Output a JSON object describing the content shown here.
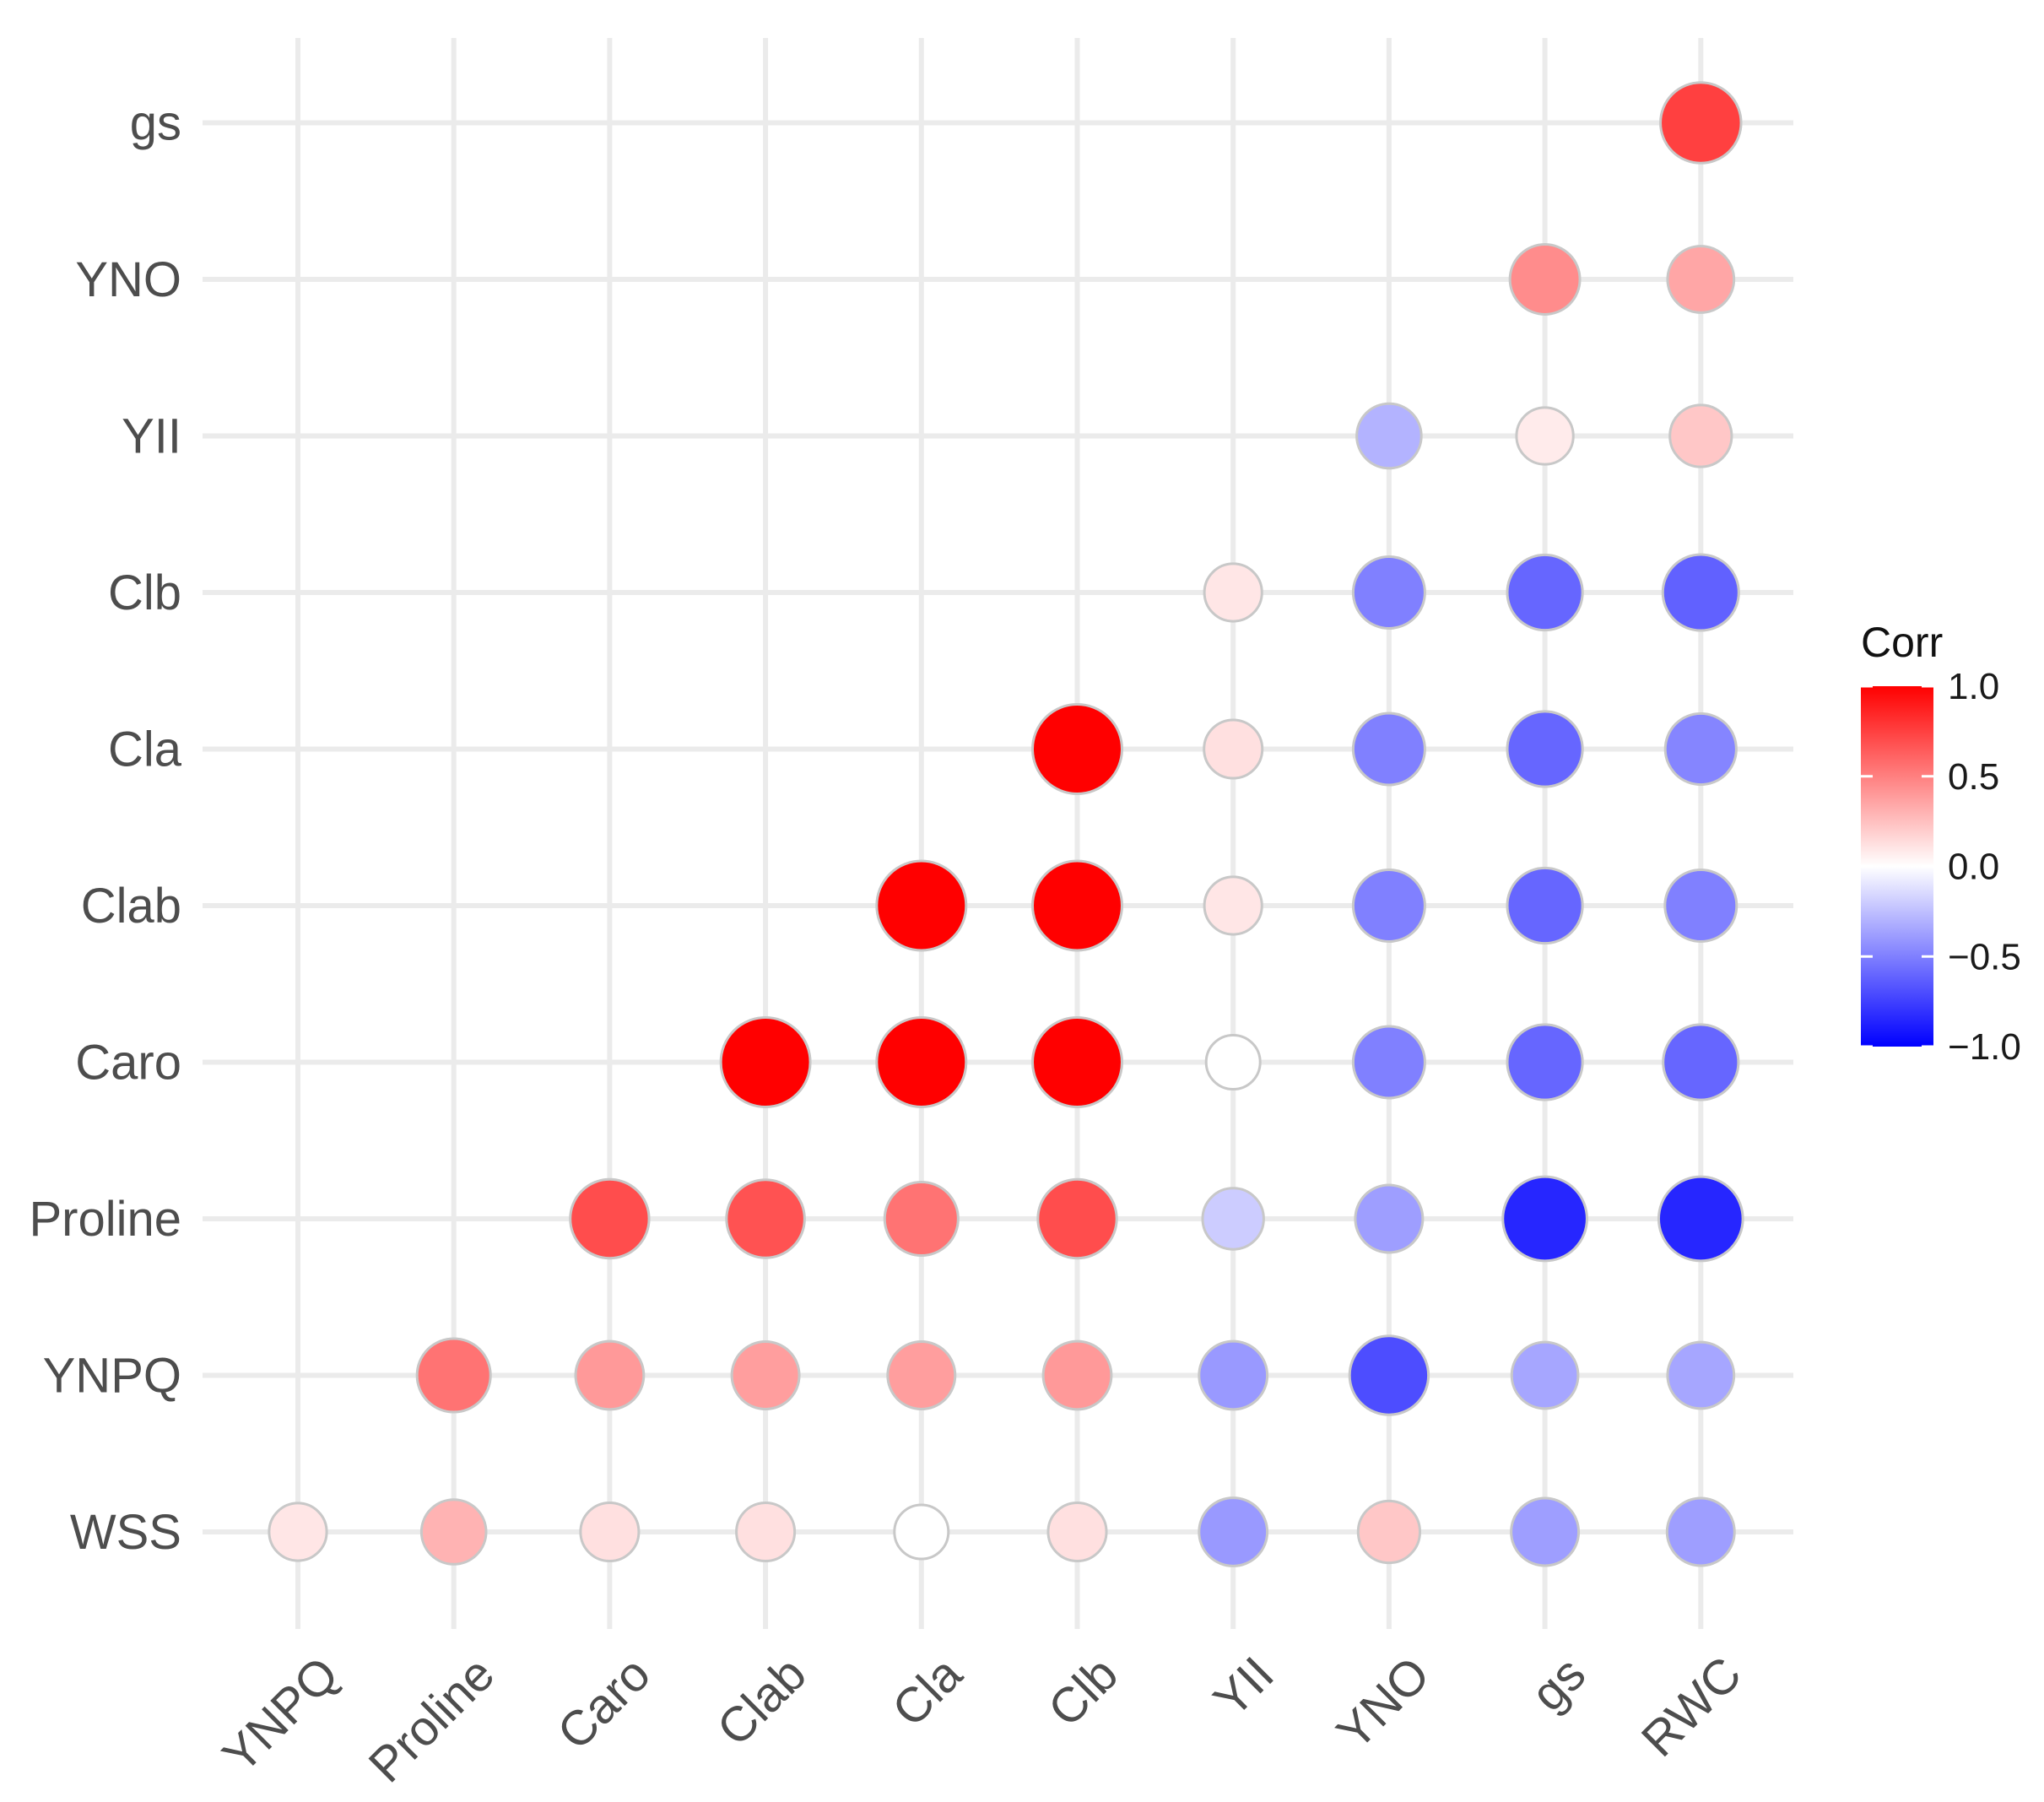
{
  "chart_data": {
    "type": "correlogram",
    "title": "",
    "x_variables": [
      "YNPQ",
      "Proline",
      "Caro",
      "Clab",
      "Cla",
      "Clb",
      "YII",
      "YNO",
      "gs",
      "RWC"
    ],
    "y_variables": [
      "WSS",
      "YNPQ",
      "Proline",
      "Caro",
      "Clab",
      "Cla",
      "Clb",
      "YII",
      "YNO",
      "gs"
    ],
    "correlations": [
      {
        "row": "gs",
        "values": [
          null,
          null,
          null,
          null,
          null,
          null,
          null,
          null,
          null,
          0.75
        ]
      },
      {
        "row": "YNO",
        "values": [
          null,
          null,
          null,
          null,
          null,
          null,
          null,
          null,
          0.45,
          0.35
        ]
      },
      {
        "row": "YII",
        "values": [
          null,
          null,
          null,
          null,
          null,
          null,
          null,
          -0.3,
          0.08,
          0.22
        ]
      },
      {
        "row": "Clb",
        "values": [
          null,
          null,
          null,
          null,
          null,
          null,
          0.1,
          -0.5,
          -0.6,
          -0.62
        ]
      },
      {
        "row": "Cla",
        "values": [
          null,
          null,
          null,
          null,
          null,
          1.0,
          0.12,
          -0.5,
          -0.6,
          -0.48
        ]
      },
      {
        "row": "Clab",
        "values": [
          null,
          null,
          null,
          null,
          1.0,
          1.0,
          0.1,
          -0.5,
          -0.6,
          -0.5
        ]
      },
      {
        "row": "Caro",
        "values": [
          null,
          null,
          null,
          1.0,
          1.0,
          1.0,
          0.0,
          -0.5,
          -0.6,
          -0.6
        ]
      },
      {
        "row": "Proline",
        "values": [
          null,
          null,
          0.7,
          0.68,
          0.55,
          0.7,
          -0.2,
          -0.38,
          -0.85,
          -0.85
        ]
      },
      {
        "row": "YNPQ",
        "values": [
          null,
          0.55,
          0.4,
          0.38,
          0.38,
          0.4,
          -0.4,
          -0.7,
          -0.35,
          -0.35
        ]
      },
      {
        "row": "WSS",
        "values": [
          0.1,
          0.3,
          0.12,
          0.12,
          0.0,
          0.12,
          -0.4,
          0.22,
          -0.38,
          -0.38
        ]
      }
    ],
    "legend": {
      "title": "Corr",
      "ticks": [
        "1.0",
        "0.5",
        "0.0",
        "−0.5",
        "−1.0"
      ],
      "range": [
        -1,
        1
      ],
      "colors": {
        "low": "#0000ff",
        "mid": "#ffffff",
        "high": "#ff0000"
      },
      "placement": "right"
    }
  }
}
